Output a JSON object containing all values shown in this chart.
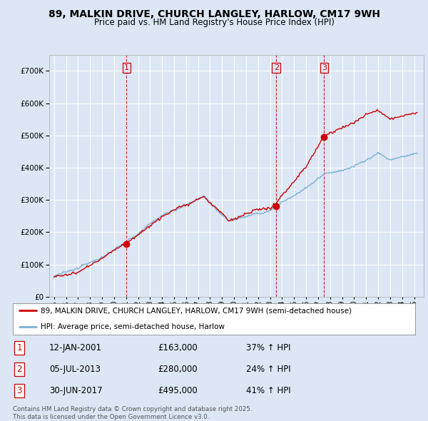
{
  "title": "89, MALKIN DRIVE, CHURCH LANGLEY, HARLOW, CM17 9WH",
  "subtitle": "Price paid vs. HM Land Registry's House Price Index (HPI)",
  "background_color": "#dce6f5",
  "plot_bg_color": "#dce6f5",
  "grid_color": "#ffffff",
  "sale_color": "#cc0000",
  "hpi_color": "#7ab0d4",
  "sale_dates_num": [
    2001.04,
    2013.51,
    2017.5
  ],
  "sale_prices": [
    163000,
    280000,
    495000
  ],
  "sale_labels": [
    "1",
    "2",
    "3"
  ],
  "legend_sale": "89, MALKIN DRIVE, CHURCH LANGLEY, HARLOW, CM17 9WH (semi-detached house)",
  "legend_hpi": "HPI: Average price, semi-detached house, Harlow",
  "table_rows": [
    [
      "1",
      "12-JAN-2001",
      "£163,000",
      "37% ↑ HPI"
    ],
    [
      "2",
      "05-JUL-2013",
      "£280,000",
      "24% ↑ HPI"
    ],
    [
      "3",
      "30-JUN-2017",
      "£495,000",
      "41% ↑ HPI"
    ]
  ],
  "footer": "Contains HM Land Registry data © Crown copyright and database right 2025.\nThis data is licensed under the Open Government Licence v3.0.",
  "ylim": [
    0,
    750000
  ],
  "yticks": [
    0,
    100000,
    200000,
    300000,
    400000,
    500000,
    600000,
    700000
  ],
  "xlim_left": 1994.6,
  "xlim_right": 2025.8
}
